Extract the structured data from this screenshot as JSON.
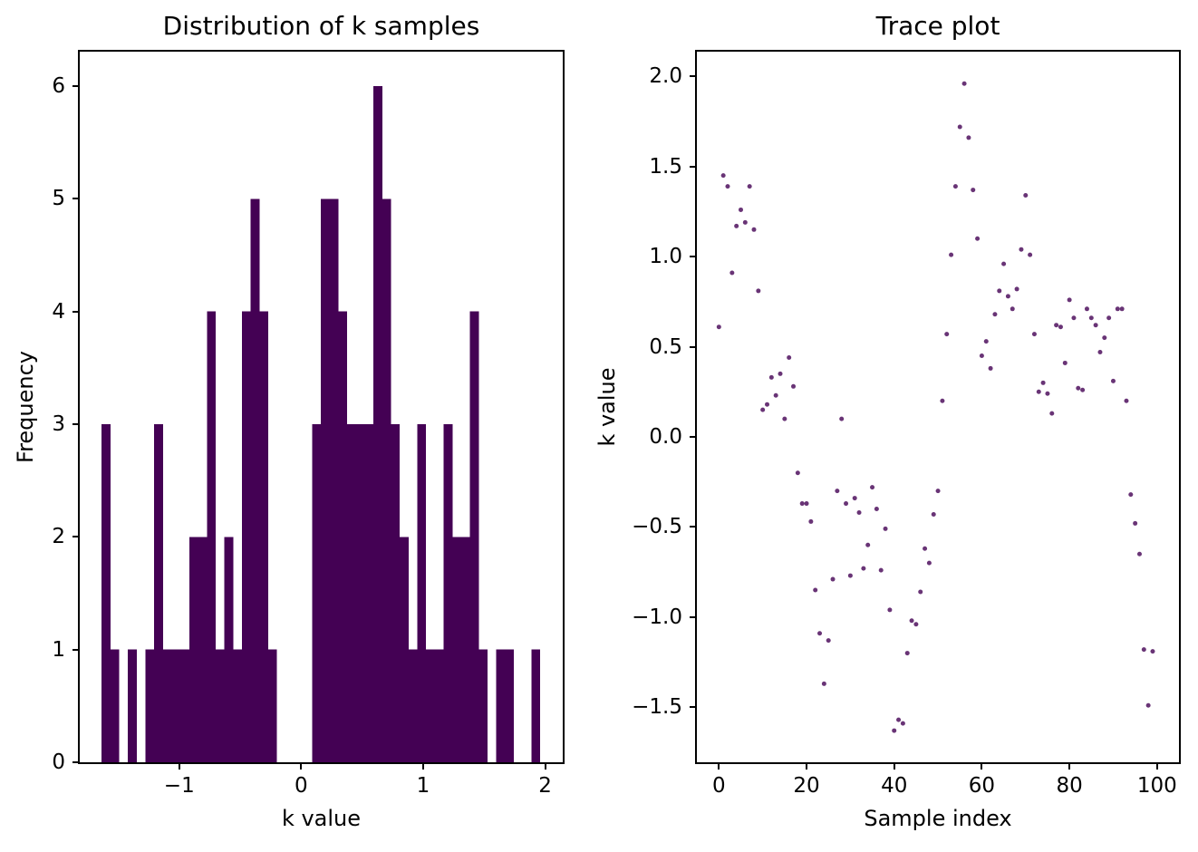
{
  "figure": {
    "background": "#ffffff",
    "text_color": "#000000",
    "spine_color": "#000000"
  },
  "chart_data": [
    {
      "id": "histogram",
      "type": "bar",
      "title": "Distribution of k samples",
      "xlabel": "k value",
      "ylabel": "Frequency",
      "bar_color": "#440154",
      "bin_start": -1.636,
      "bin_width": 0.0719,
      "counts": [
        3,
        1,
        0,
        1,
        0,
        1,
        3,
        1,
        1,
        1,
        2,
        2,
        4,
        1,
        2,
        1,
        4,
        5,
        4,
        1,
        0,
        0,
        0,
        0,
        3,
        5,
        5,
        4,
        3,
        3,
        3,
        6,
        5,
        3,
        2,
        1,
        3,
        1,
        1,
        3,
        2,
        2,
        4,
        1,
        0,
        1,
        1,
        0,
        0,
        1
      ],
      "xlim": [
        -1.8155,
        2.1445
      ],
      "ylim": [
        0,
        6.306
      ],
      "grid": false,
      "legend": null,
      "xticks": [
        {
          "v": -1,
          "label": "−1"
        },
        {
          "v": 0,
          "label": "0"
        },
        {
          "v": 1,
          "label": "1"
        },
        {
          "v": 2,
          "label": "2"
        }
      ],
      "yticks": [
        {
          "v": 0,
          "label": "0"
        },
        {
          "v": 1,
          "label": "1"
        },
        {
          "v": 2,
          "label": "2"
        },
        {
          "v": 3,
          "label": "3"
        },
        {
          "v": 4,
          "label": "4"
        },
        {
          "v": 5,
          "label": "5"
        },
        {
          "v": 6,
          "label": "6"
        }
      ]
    },
    {
      "id": "trace",
      "type": "scatter",
      "title": "Trace plot",
      "xlabel": "Sample index",
      "ylabel": "k value",
      "dot_color": "#440154",
      "dot_opacity": 0.8,
      "x_is_index": true,
      "y": [
        0.61,
        1.45,
        1.39,
        0.91,
        1.17,
        1.26,
        1.19,
        1.39,
        1.15,
        0.81,
        0.15,
        0.18,
        0.33,
        0.23,
        0.35,
        0.1,
        0.44,
        0.28,
        -0.2,
        -0.37,
        -0.37,
        -0.47,
        -0.85,
        -1.09,
        -1.37,
        -1.13,
        -0.79,
        -0.3,
        0.1,
        -0.37,
        -0.77,
        -0.34,
        -0.42,
        -0.73,
        -0.6,
        -0.28,
        -0.4,
        -0.74,
        -0.51,
        -0.96,
        -1.63,
        -1.57,
        -1.59,
        -1.2,
        -1.02,
        -1.04,
        -0.86,
        -0.62,
        -0.7,
        -0.43,
        -0.3,
        0.2,
        0.57,
        1.01,
        1.39,
        1.72,
        1.96,
        1.66,
        1.37,
        1.1,
        0.45,
        0.53,
        0.38,
        0.68,
        0.81,
        0.96,
        0.78,
        0.71,
        0.82,
        1.04,
        1.34,
        1.01,
        0.57,
        0.25,
        0.3,
        0.24,
        0.13,
        0.62,
        0.61,
        0.41,
        0.76,
        0.66,
        0.27,
        0.26,
        0.71,
        0.66,
        0.62,
        0.47,
        0.55,
        0.66,
        0.31,
        0.71,
        0.71,
        0.2,
        -0.32,
        -0.48,
        -0.65,
        -1.18,
        -1.49,
        -1.19
      ],
      "xlim": [
        -5.03,
        105.0
      ],
      "ylim": [
        -1.8056,
        2.1373
      ],
      "grid": false,
      "legend": null,
      "xticks": [
        {
          "v": 0,
          "label": "0"
        },
        {
          "v": 20,
          "label": "20"
        },
        {
          "v": 40,
          "label": "40"
        },
        {
          "v": 60,
          "label": "60"
        },
        {
          "v": 80,
          "label": "80"
        },
        {
          "v": 100,
          "label": "100"
        }
      ],
      "yticks": [
        {
          "v": 2.0,
          "label": "2.0"
        },
        {
          "v": 1.5,
          "label": "1.5"
        },
        {
          "v": 1.0,
          "label": "1.0"
        },
        {
          "v": 0.5,
          "label": "0.5"
        },
        {
          "v": 0.0,
          "label": "0.0"
        },
        {
          "v": -0.5,
          "label": "−0.5"
        },
        {
          "v": -1.0,
          "label": "−1.0"
        },
        {
          "v": -1.5,
          "label": "−1.5"
        }
      ]
    }
  ]
}
